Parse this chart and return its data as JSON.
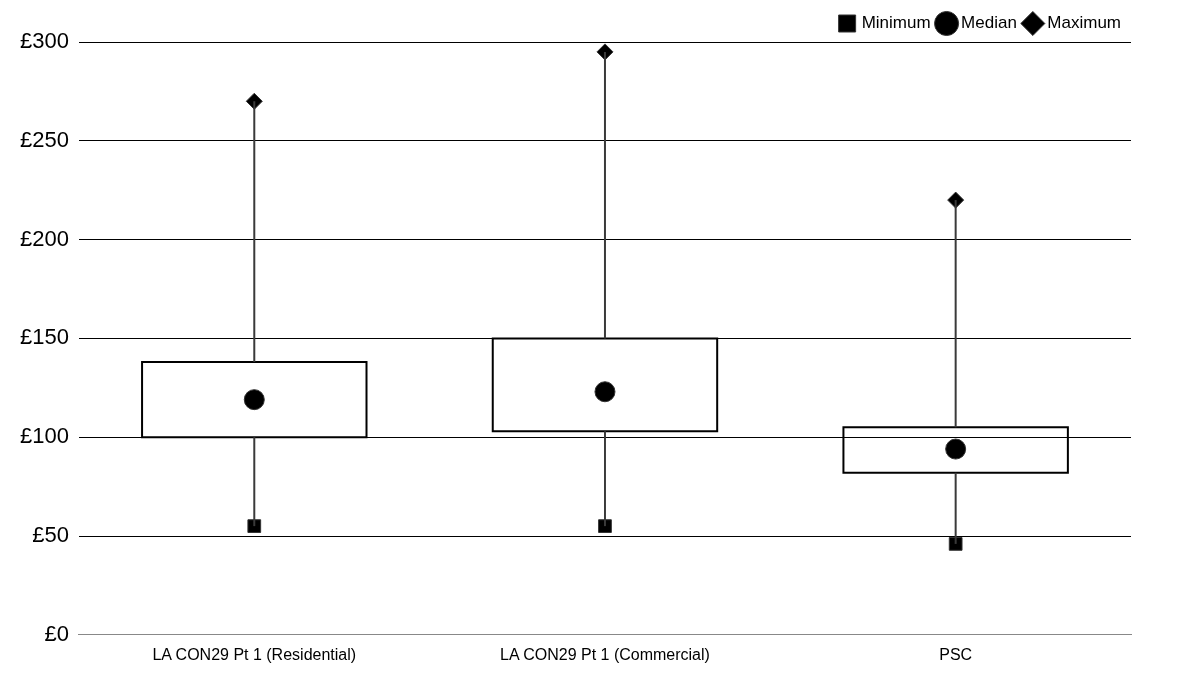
{
  "chart_data": {
    "type": "box",
    "categories": [
      "LA CON29 Pt 1 (Residential)",
      "LA CON29 Pt 1 (Commercial)",
      "PSC"
    ],
    "boxes": [
      {
        "low": 55,
        "q1": 100,
        "q3": 138,
        "high": 270
      },
      {
        "low": 55,
        "q1": 103,
        "q3": 150,
        "high": 295
      },
      {
        "low": 46,
        "q1": 82,
        "q3": 105,
        "high": 220
      }
    ],
    "series": [
      {
        "name": "Minimum",
        "type": "scatter",
        "marker": "square",
        "color": "#000000",
        "values": [
          55,
          55,
          46
        ]
      },
      {
        "name": "Median",
        "type": "scatter",
        "marker": "circle",
        "color": "#000000",
        "values": [
          119,
          123,
          94
        ]
      },
      {
        "name": "Maximum",
        "type": "scatter",
        "marker": "diamond",
        "color": "#000000",
        "values": [
          270,
          295,
          220
        ]
      }
    ],
    "ylim": [
      0,
      300
    ],
    "yticks": [
      {
        "value": 0,
        "label": "£0"
      },
      {
        "value": 50,
        "label": "£50"
      },
      {
        "value": 100,
        "label": "£100"
      },
      {
        "value": 150,
        "label": "£150"
      },
      {
        "value": 200,
        "label": "£200"
      },
      {
        "value": 250,
        "label": "£250"
      },
      {
        "value": 300,
        "label": "£300"
      }
    ],
    "grid": "y",
    "legend": "top right"
  }
}
